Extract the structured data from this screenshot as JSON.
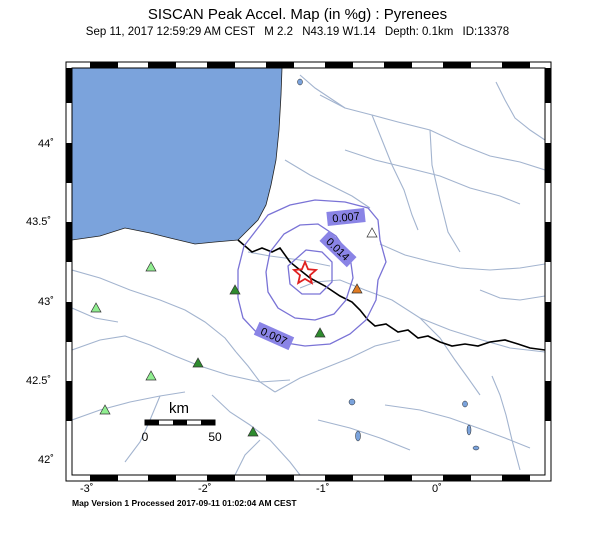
{
  "header": {
    "title": "SISCAN Peak Accel. Map (in %g) : Pyrenees",
    "date": "Sep 11, 2017 12:59:29 AM CEST",
    "magnitude": "M 2.2",
    "location": "N43.19 W1.14",
    "depth": "Depth: 0.1km",
    "event_id": "ID:13378"
  },
  "axes": {
    "lat_labels": [
      "44˚",
      "43.5˚",
      "43˚",
      "42.5˚",
      "42˚"
    ],
    "lon_labels": [
      "-3˚",
      "-2˚",
      "-1˚",
      "0˚"
    ]
  },
  "contours": {
    "outer_label": "0.007",
    "inner_label": "0.014",
    "lower_label": "0.007"
  },
  "scale_bar": {
    "unit": "km",
    "start": "0",
    "end": "50"
  },
  "footer": {
    "text": "Map Version 1 Processed 2017-09-11 01:02:04 AM CEST"
  },
  "colors": {
    "sea": "#7ba3dc",
    "rivers": "#a3b4cf",
    "contour": "#7a73d6",
    "label_box": "#8a84e6",
    "border": "#000000",
    "epicenter": "#e02020",
    "station_light": "#90ee90",
    "station_dark": "#2e8b2e",
    "station_orange": "#e07b22"
  }
}
